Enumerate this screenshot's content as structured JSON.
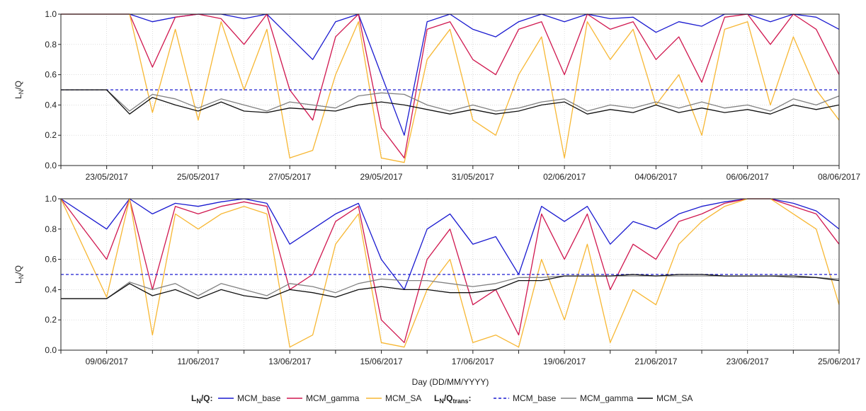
{
  "colors": {
    "MCM_base": "#1a1ad0",
    "MCM_gamma": "#d0174f",
    "MCM_SA": "#f7b733",
    "trans_base": "#1a1ad0",
    "trans_gamma": "#808080",
    "trans_SA": "#111111",
    "grid": "#c8c8c8"
  },
  "xlabel": "Day (DD/MM/YYYY)",
  "legend": {
    "group1_title": "L",
    "group1_sub": "N",
    "group1_suffix": "/Q:",
    "group2_title": "L",
    "group2_sub": "N",
    "group2_mid": "/Q",
    "group2_sub2": "trans",
    "group2_suffix": ":",
    "items1": [
      "MCM_base",
      "MCM_gamma",
      "MCM_SA"
    ],
    "items2": [
      "MCM_base",
      "MCM_gamma",
      "MCM_SA"
    ]
  },
  "chart_data": [
    {
      "type": "line",
      "ylabel_main": "L",
      "ylabel_sub": "N",
      "ylabel_suffix": "/Q",
      "ylim": [
        0,
        1
      ],
      "yticks": [
        "0.0",
        "0.2",
        "0.4",
        "0.6",
        "0.8",
        "1.0"
      ],
      "xlim": [
        "22/05/2017",
        "08/06/2017"
      ],
      "xticks": [
        "23/05/2017",
        "25/05/2017",
        "27/05/2017",
        "29/05/2017",
        "31/05/2017",
        "02/06/2017",
        "04/06/2017",
        "06/06/2017",
        "08/06/2017"
      ],
      "grid": true,
      "series": [
        {
          "name": "MCM_base",
          "group": "L_N/Q",
          "x": [
            "22/05/2017",
            "23/05/2017",
            "23/05/2017 12:00",
            "24/05/2017",
            "24/05/2017 12:00",
            "25/05/2017",
            "25/05/2017 12:00",
            "26/05/2017",
            "26/05/2017 12:00",
            "27/05/2017",
            "27/05/2017 12:00",
            "28/05/2017",
            "28/05/2017 12:00",
            "29/05/2017",
            "29/05/2017 12:00",
            "30/05/2017",
            "30/05/2017 12:00",
            "31/05/2017",
            "31/05/2017 12:00",
            "01/06/2017",
            "01/06/2017 12:00",
            "02/06/2017",
            "02/06/2017 12:00",
            "03/06/2017",
            "03/06/2017 12:00",
            "04/06/2017",
            "04/06/2017 12:00",
            "05/06/2017",
            "05/06/2017 12:00",
            "06/06/2017",
            "06/06/2017 12:00",
            "07/06/2017",
            "07/06/2017 12:00",
            "08/06/2017"
          ],
          "values": [
            1.0,
            1.0,
            1.0,
            0.95,
            0.98,
            1.0,
            1.0,
            0.97,
            1.0,
            0.85,
            0.7,
            0.95,
            1.0,
            0.6,
            0.2,
            0.95,
            1.0,
            0.9,
            0.85,
            0.95,
            1.0,
            0.95,
            1.0,
            0.97,
            0.98,
            0.88,
            0.95,
            0.92,
            1.0,
            1.0,
            0.95,
            1.0,
            0.98,
            0.9
          ]
        },
        {
          "name": "MCM_gamma",
          "group": "L_N/Q",
          "x": [
            "22/05/2017",
            "23/05/2017",
            "23/05/2017 12:00",
            "24/05/2017",
            "24/05/2017 12:00",
            "25/05/2017",
            "25/05/2017 12:00",
            "26/05/2017",
            "26/05/2017 12:00",
            "27/05/2017",
            "27/05/2017 12:00",
            "28/05/2017",
            "28/05/2017 12:00",
            "29/05/2017",
            "29/05/2017 12:00",
            "30/05/2017",
            "30/05/2017 12:00",
            "31/05/2017",
            "31/05/2017 12:00",
            "01/06/2017",
            "01/06/2017 12:00",
            "02/06/2017",
            "02/06/2017 12:00",
            "03/06/2017",
            "03/06/2017 12:00",
            "04/06/2017",
            "04/06/2017 12:00",
            "05/06/2017",
            "05/06/2017 12:00",
            "06/06/2017",
            "06/06/2017 12:00",
            "07/06/2017",
            "07/06/2017 12:00",
            "08/06/2017"
          ],
          "values": [
            1.0,
            1.0,
            1.0,
            0.65,
            0.98,
            1.0,
            0.97,
            0.8,
            1.0,
            0.5,
            0.3,
            0.85,
            1.0,
            0.25,
            0.05,
            0.9,
            0.95,
            0.7,
            0.6,
            0.9,
            0.95,
            0.6,
            1.0,
            0.9,
            0.95,
            0.7,
            0.85,
            0.55,
            0.98,
            1.0,
            0.8,
            1.0,
            0.9,
            0.6
          ]
        },
        {
          "name": "MCM_SA",
          "group": "L_N/Q",
          "x": [
            "22/05/2017",
            "23/05/2017",
            "23/05/2017 12:00",
            "24/05/2017",
            "24/05/2017 12:00",
            "25/05/2017",
            "25/05/2017 12:00",
            "26/05/2017",
            "26/05/2017 12:00",
            "27/05/2017",
            "27/05/2017 12:00",
            "28/05/2017",
            "28/05/2017 12:00",
            "29/05/2017",
            "29/05/2017 12:00",
            "30/05/2017",
            "30/05/2017 12:00",
            "31/05/2017",
            "31/05/2017 12:00",
            "01/06/2017",
            "01/06/2017 12:00",
            "02/06/2017",
            "02/06/2017 12:00",
            "03/06/2017",
            "03/06/2017 12:00",
            "04/06/2017",
            "04/06/2017 12:00",
            "05/06/2017",
            "05/06/2017 12:00",
            "06/06/2017",
            "06/06/2017 12:00",
            "07/06/2017",
            "07/06/2017 12:00",
            "08/06/2017"
          ],
          "values": [
            1.0,
            1.0,
            1.0,
            0.35,
            0.9,
            0.3,
            0.95,
            0.5,
            0.9,
            0.05,
            0.1,
            0.6,
            0.95,
            0.05,
            0.02,
            0.7,
            0.9,
            0.3,
            0.2,
            0.6,
            0.85,
            0.05,
            0.95,
            0.7,
            0.9,
            0.4,
            0.6,
            0.2,
            0.9,
            0.95,
            0.4,
            0.85,
            0.5,
            0.3
          ]
        },
        {
          "name": "MCM_base",
          "group": "L_N/Q_trans",
          "x": [
            "22/05/2017",
            "08/06/2017"
          ],
          "values": [
            0.5,
            0.5
          ]
        },
        {
          "name": "MCM_gamma",
          "group": "L_N/Q_trans",
          "x": [
            "22/05/2017",
            "23/05/2017",
            "23/05/2017 12:00",
            "24/05/2017",
            "24/05/2017 12:00",
            "25/05/2017",
            "25/05/2017 12:00",
            "26/05/2017",
            "26/05/2017 12:00",
            "27/05/2017",
            "27/05/2017 12:00",
            "28/05/2017",
            "28/05/2017 12:00",
            "29/05/2017",
            "29/05/2017 12:00",
            "30/05/2017",
            "30/05/2017 12:00",
            "31/05/2017",
            "31/05/2017 12:00",
            "01/06/2017",
            "01/06/2017 12:00",
            "02/06/2017",
            "02/06/2017 12:00",
            "03/06/2017",
            "03/06/2017 12:00",
            "04/06/2017",
            "04/06/2017 12:00",
            "05/06/2017",
            "05/06/2017 12:00",
            "06/06/2017",
            "06/06/2017 12:00",
            "07/06/2017",
            "07/06/2017 12:00",
            "08/06/2017"
          ],
          "values": [
            0.5,
            0.5,
            0.36,
            0.47,
            0.44,
            0.38,
            0.44,
            0.4,
            0.36,
            0.42,
            0.4,
            0.38,
            0.46,
            0.48,
            0.47,
            0.4,
            0.36,
            0.4,
            0.36,
            0.38,
            0.42,
            0.44,
            0.36,
            0.4,
            0.38,
            0.42,
            0.38,
            0.42,
            0.38,
            0.4,
            0.36,
            0.44,
            0.4,
            0.46
          ]
        },
        {
          "name": "MCM_SA",
          "group": "L_N/Q_trans",
          "x": [
            "22/05/2017",
            "23/05/2017",
            "23/05/2017 12:00",
            "24/05/2017",
            "24/05/2017 12:00",
            "25/05/2017",
            "25/05/2017 12:00",
            "26/05/2017",
            "26/05/2017 12:00",
            "27/05/2017",
            "27/05/2017 12:00",
            "28/05/2017",
            "28/05/2017 12:00",
            "29/05/2017",
            "29/05/2017 12:00",
            "30/05/2017",
            "30/05/2017 12:00",
            "31/05/2017",
            "31/05/2017 12:00",
            "01/06/2017",
            "01/06/2017 12:00",
            "02/06/2017",
            "02/06/2017 12:00",
            "03/06/2017",
            "03/06/2017 12:00",
            "04/06/2017",
            "04/06/2017 12:00",
            "05/06/2017",
            "05/06/2017 12:00",
            "06/06/2017",
            "06/06/2017 12:00",
            "07/06/2017",
            "07/06/2017 12:00",
            "08/06/2017"
          ],
          "values": [
            0.5,
            0.5,
            0.34,
            0.45,
            0.4,
            0.36,
            0.42,
            0.36,
            0.35,
            0.38,
            0.37,
            0.36,
            0.4,
            0.42,
            0.4,
            0.37,
            0.34,
            0.37,
            0.34,
            0.36,
            0.4,
            0.42,
            0.34,
            0.37,
            0.35,
            0.4,
            0.35,
            0.38,
            0.35,
            0.37,
            0.34,
            0.4,
            0.37,
            0.4
          ]
        }
      ]
    },
    {
      "type": "line",
      "ylabel_main": "L",
      "ylabel_sub": "N",
      "ylabel_suffix": "/Q",
      "ylim": [
        0,
        1
      ],
      "yticks": [
        "0.0",
        "0.2",
        "0.4",
        "0.6",
        "0.8",
        "1.0"
      ],
      "xlim": [
        "08/06/2017",
        "25/06/2017"
      ],
      "xticks": [
        "09/06/2017",
        "11/06/2017",
        "13/06/2017",
        "15/06/2017",
        "17/06/2017",
        "19/06/2017",
        "21/06/2017",
        "23/06/2017",
        "25/06/2017"
      ],
      "grid": true,
      "series": [
        {
          "name": "MCM_base",
          "group": "L_N/Q",
          "x": [
            "08/06/2017",
            "09/06/2017",
            "09/06/2017 12:00",
            "10/06/2017",
            "10/06/2017 12:00",
            "11/06/2017",
            "11/06/2017 12:00",
            "12/06/2017",
            "12/06/2017 12:00",
            "13/06/2017",
            "13/06/2017 12:00",
            "14/06/2017",
            "14/06/2017 12:00",
            "15/06/2017",
            "15/06/2017 12:00",
            "16/06/2017",
            "16/06/2017 12:00",
            "17/06/2017",
            "17/06/2017 12:00",
            "18/06/2017",
            "18/06/2017 12:00",
            "19/06/2017",
            "19/06/2017 12:00",
            "20/06/2017",
            "20/06/2017 12:00",
            "21/06/2017",
            "21/06/2017 12:00",
            "22/06/2017",
            "22/06/2017 12:00",
            "23/06/2017",
            "23/06/2017 12:00",
            "24/06/2017",
            "24/06/2017 12:00",
            "25/06/2017"
          ],
          "values": [
            1.0,
            0.8,
            1.0,
            0.9,
            0.97,
            0.95,
            0.98,
            1.0,
            0.97,
            0.7,
            0.8,
            0.9,
            0.97,
            0.6,
            0.4,
            0.8,
            0.9,
            0.7,
            0.75,
            0.5,
            0.95,
            0.85,
            0.95,
            0.7,
            0.85,
            0.8,
            0.9,
            0.95,
            0.98,
            1.0,
            1.0,
            0.97,
            0.92,
            0.8
          ]
        },
        {
          "name": "MCM_gamma",
          "group": "L_N/Q",
          "x": [
            "08/06/2017",
            "09/06/2017",
            "09/06/2017 12:00",
            "10/06/2017",
            "10/06/2017 12:00",
            "11/06/2017",
            "11/06/2017 12:00",
            "12/06/2017",
            "12/06/2017 12:00",
            "13/06/2017",
            "13/06/2017 12:00",
            "14/06/2017",
            "14/06/2017 12:00",
            "15/06/2017",
            "15/06/2017 12:00",
            "16/06/2017",
            "16/06/2017 12:00",
            "17/06/2017",
            "17/06/2017 12:00",
            "18/06/2017",
            "18/06/2017 12:00",
            "19/06/2017",
            "19/06/2017 12:00",
            "20/06/2017",
            "20/06/2017 12:00",
            "21/06/2017",
            "21/06/2017 12:00",
            "22/06/2017",
            "22/06/2017 12:00",
            "23/06/2017",
            "23/06/2017 12:00",
            "24/06/2017",
            "24/06/2017 12:00",
            "25/06/2017"
          ],
          "values": [
            1.0,
            0.6,
            1.0,
            0.4,
            0.95,
            0.9,
            0.95,
            0.98,
            0.95,
            0.4,
            0.5,
            0.85,
            0.95,
            0.2,
            0.05,
            0.6,
            0.8,
            0.3,
            0.4,
            0.1,
            0.9,
            0.6,
            0.9,
            0.4,
            0.7,
            0.6,
            0.85,
            0.9,
            0.97,
            1.0,
            1.0,
            0.95,
            0.9,
            0.7
          ]
        },
        {
          "name": "MCM_SA",
          "group": "L_N/Q",
          "x": [
            "08/06/2017",
            "09/06/2017",
            "09/06/2017 12:00",
            "10/06/2017",
            "10/06/2017 12:00",
            "11/06/2017",
            "11/06/2017 12:00",
            "12/06/2017",
            "12/06/2017 12:00",
            "13/06/2017",
            "13/06/2017 12:00",
            "14/06/2017",
            "14/06/2017 12:00",
            "15/06/2017",
            "15/06/2017 12:00",
            "16/06/2017",
            "16/06/2017 12:00",
            "17/06/2017",
            "17/06/2017 12:00",
            "18/06/2017",
            "18/06/2017 12:00",
            "19/06/2017",
            "19/06/2017 12:00",
            "20/06/2017",
            "20/06/2017 12:00",
            "21/06/2017",
            "21/06/2017 12:00",
            "22/06/2017",
            "22/06/2017 12:00",
            "23/06/2017",
            "23/06/2017 12:00",
            "24/06/2017",
            "24/06/2017 12:00",
            "25/06/2017"
          ],
          "values": [
            1.0,
            0.35,
            1.0,
            0.1,
            0.9,
            0.8,
            0.9,
            0.95,
            0.9,
            0.02,
            0.1,
            0.7,
            0.9,
            0.05,
            0.02,
            0.4,
            0.6,
            0.05,
            0.1,
            0.02,
            0.6,
            0.2,
            0.7,
            0.05,
            0.4,
            0.3,
            0.7,
            0.85,
            0.95,
            1.0,
            1.0,
            0.9,
            0.8,
            0.3
          ]
        },
        {
          "name": "MCM_base",
          "group": "L_N/Q_trans",
          "x": [
            "08/06/2017",
            "25/06/2017"
          ],
          "values": [
            0.5,
            0.5
          ]
        },
        {
          "name": "MCM_gamma",
          "group": "L_N/Q_trans",
          "x": [
            "08/06/2017",
            "09/06/2017",
            "09/06/2017 12:00",
            "10/06/2017",
            "10/06/2017 12:00",
            "11/06/2017",
            "11/06/2017 12:00",
            "12/06/2017",
            "12/06/2017 12:00",
            "13/06/2017",
            "13/06/2017 12:00",
            "14/06/2017",
            "14/06/2017 12:00",
            "15/06/2017",
            "15/06/2017 12:00",
            "16/06/2017",
            "16/06/2017 12:00",
            "17/06/2017",
            "17/06/2017 12:00",
            "18/06/2017",
            "18/06/2017 12:00",
            "19/06/2017",
            "19/06/2017 12:00",
            "20/06/2017",
            "20/06/2017 12:00",
            "21/06/2017",
            "21/06/2017 12:00",
            "22/06/2017",
            "22/06/2017 12:00",
            "23/06/2017",
            "23/06/2017 12:00",
            "24/06/2017",
            "24/06/2017 12:00",
            "25/06/2017"
          ],
          "values": [
            0.34,
            0.34,
            0.45,
            0.4,
            0.44,
            0.36,
            0.44,
            0.4,
            0.36,
            0.44,
            0.42,
            0.38,
            0.44,
            0.47,
            0.46,
            0.46,
            0.44,
            0.42,
            0.44,
            0.48,
            0.48,
            0.49,
            0.49,
            0.49,
            0.49,
            0.49,
            0.49,
            0.49,
            0.49,
            0.49,
            0.49,
            0.48,
            0.48,
            0.47
          ]
        },
        {
          "name": "MCM_SA",
          "group": "L_N/Q_trans",
          "x": [
            "08/06/2017",
            "09/06/2017",
            "09/06/2017 12:00",
            "10/06/2017",
            "10/06/2017 12:00",
            "11/06/2017",
            "11/06/2017 12:00",
            "12/06/2017",
            "12/06/2017 12:00",
            "13/06/2017",
            "13/06/2017 12:00",
            "14/06/2017",
            "14/06/2017 12:00",
            "15/06/2017",
            "15/06/2017 12:00",
            "16/06/2017",
            "16/06/2017 12:00",
            "17/06/2017",
            "17/06/2017 12:00",
            "18/06/2017",
            "18/06/2017 12:00",
            "19/06/2017",
            "19/06/2017 12:00",
            "20/06/2017",
            "20/06/2017 12:00",
            "21/06/2017",
            "21/06/2017 12:00",
            "22/06/2017",
            "22/06/2017 12:00",
            "23/06/2017",
            "23/06/2017 12:00",
            "24/06/2017",
            "24/06/2017 12:00",
            "25/06/2017"
          ],
          "values": [
            0.34,
            0.34,
            0.44,
            0.36,
            0.4,
            0.34,
            0.4,
            0.36,
            0.34,
            0.4,
            0.38,
            0.35,
            0.4,
            0.42,
            0.4,
            0.4,
            0.38,
            0.38,
            0.4,
            0.46,
            0.46,
            0.49,
            0.49,
            0.49,
            0.5,
            0.49,
            0.5,
            0.5,
            0.49,
            0.49,
            0.49,
            0.49,
            0.48,
            0.46
          ]
        }
      ]
    }
  ]
}
